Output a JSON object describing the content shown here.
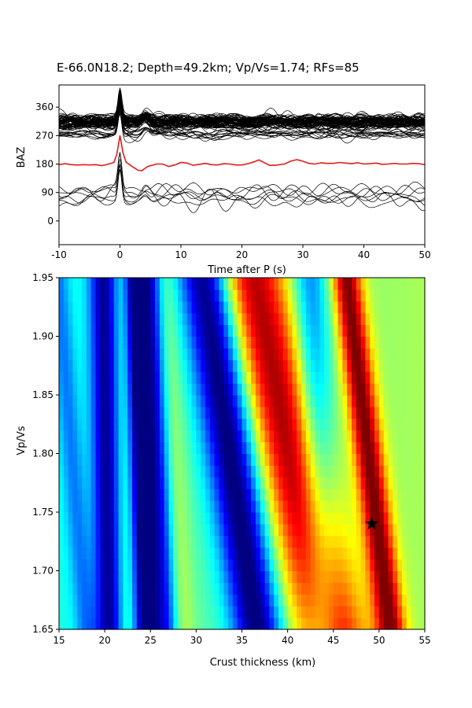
{
  "figure": {
    "title": "E-66.0N18.2; Depth=49.2km; Vp/Vs=1.74; RFs=85"
  },
  "chart_data": [
    {
      "type": "line",
      "subtype": "receiver-function-stack",
      "xlabel": "Time after P (s)",
      "ylabel": "BAZ",
      "xlim": [
        -10,
        50
      ],
      "ylim": [
        -75,
        430
      ],
      "x_ticks": [
        -10,
        0,
        10,
        20,
        30,
        40,
        50
      ],
      "y_ticks": [
        0,
        90,
        180,
        270,
        360
      ],
      "grid": false,
      "trace_count": 85,
      "trace_color": "#000000",
      "stack_color": "#e41a1c",
      "baz_groups": [
        {
          "baz": 70,
          "count": 4
        },
        {
          "baz": 95,
          "count": 3
        },
        {
          "baz": 275,
          "count": 10
        },
        {
          "baz": 305,
          "count": 30
        },
        {
          "baz": 320,
          "count": 38
        }
      ],
      "series": [
        {
          "name": "",
          "color": "#e41a1c",
          "baseline": 180,
          "points": [
            [
              -10,
              178
            ],
            [
              -9,
              181
            ],
            [
              -8,
              178
            ],
            [
              -7,
              177
            ],
            [
              -6,
              178
            ],
            [
              -5,
              177
            ],
            [
              -4,
              178
            ],
            [
              -3,
              175
            ],
            [
              -2,
              179
            ],
            [
              -1,
              185
            ],
            [
              -0.5,
              212
            ],
            [
              0,
              270
            ],
            [
              0.5,
              215
            ],
            [
              1,
              186
            ],
            [
              2,
              172
            ],
            [
              3,
              160
            ],
            [
              3.6,
              159
            ],
            [
              4.5,
              172
            ],
            [
              6,
              180
            ],
            [
              7,
              180
            ],
            [
              8,
              172
            ],
            [
              9,
              177
            ],
            [
              10,
              185
            ],
            [
              11,
              183
            ],
            [
              12,
              176
            ],
            [
              13,
              179
            ],
            [
              14,
              182
            ],
            [
              15,
              178
            ],
            [
              16,
              177
            ],
            [
              17,
              181
            ],
            [
              18,
              180
            ],
            [
              19,
              177
            ],
            [
              20,
              177
            ],
            [
              21,
              181
            ],
            [
              22,
              187
            ],
            [
              22.8,
              193
            ],
            [
              23.5,
              186
            ],
            [
              24.5,
              176
            ],
            [
              25.5,
              176
            ],
            [
              27,
              180
            ],
            [
              28,
              189
            ],
            [
              29,
              194
            ],
            [
              30,
              189
            ],
            [
              31,
              182
            ],
            [
              32,
              180
            ],
            [
              33,
              184
            ],
            [
              34,
              182
            ],
            [
              35,
              182
            ],
            [
              36,
              185
            ],
            [
              37,
              183
            ],
            [
              38,
              181
            ],
            [
              39,
              184
            ],
            [
              40,
              180
            ],
            [
              41,
              181
            ],
            [
              42,
              183
            ],
            [
              43,
              179
            ],
            [
              44,
              180
            ],
            [
              45,
              182
            ],
            [
              46,
              180
            ],
            [
              47,
              180
            ],
            [
              48,
              182
            ],
            [
              49,
              181
            ],
            [
              50,
              178
            ]
          ]
        }
      ]
    },
    {
      "type": "heatmap",
      "subtype": "h-kappa-stacking",
      "xlabel": "Crust thickness (km)",
      "ylabel": "Vp/Vs",
      "xlim": [
        15,
        55
      ],
      "ylim": [
        1.65,
        1.95
      ],
      "x_ticks": [
        15,
        20,
        25,
        30,
        35,
        40,
        45,
        50,
        55
      ],
      "y_ticks": [
        1.65,
        1.7,
        1.75,
        1.8,
        1.85,
        1.9,
        1.95
      ],
      "colormap": "jet",
      "grid_cells": {
        "nx": 80,
        "ny": 30
      },
      "best_fit": {
        "thickness_km": 49.2,
        "vp_vs": 1.74,
        "marker": "star"
      }
    }
  ]
}
